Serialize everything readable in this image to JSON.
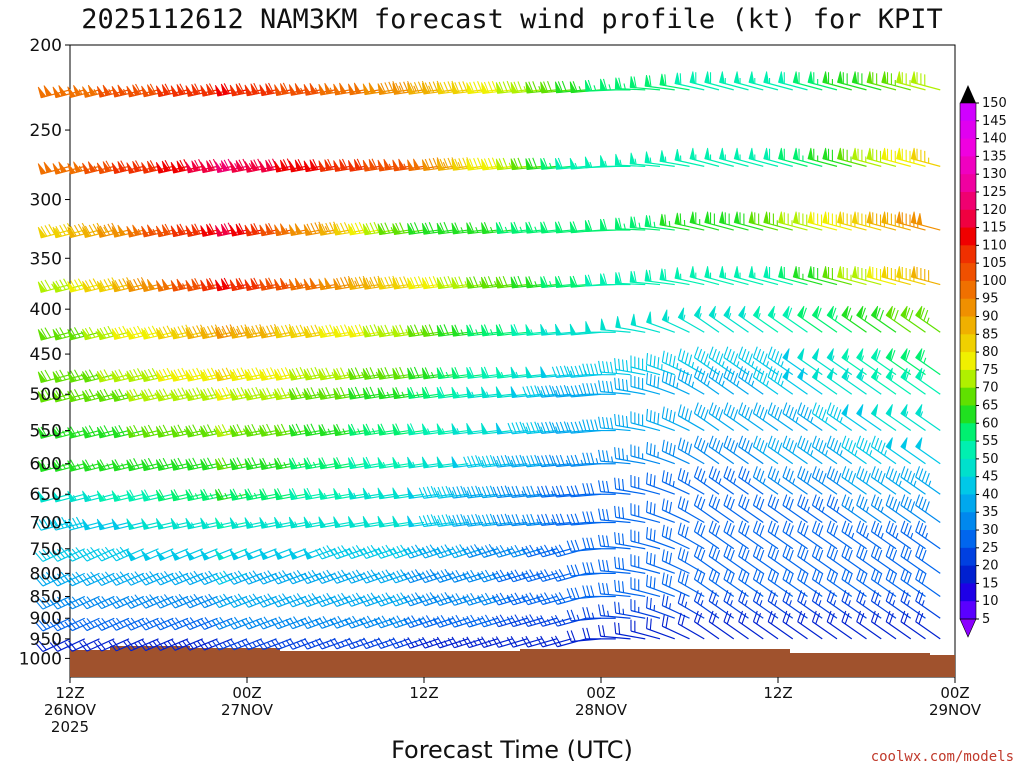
{
  "chart_data": {
    "type": "wind-barb time-height profile",
    "title": "2025112612 NAM3KM forecast wind profile (kt) for KPIT",
    "xlabel": "Forecast Time (UTC)",
    "ylabel": "",
    "y_levels_hpa": [
      200,
      250,
      300,
      350,
      400,
      450,
      500,
      550,
      600,
      650,
      700,
      750,
      800,
      850,
      900,
      950,
      1000
    ],
    "ylim": [
      200,
      1000
    ],
    "x_ticks": [
      {
        "hour": 0,
        "line1": "12Z",
        "line2": "26NOV",
        "line3": "2025"
      },
      {
        "hour": 12,
        "line1": "00Z",
        "line2": "27NOV",
        "line3": ""
      },
      {
        "hour": 24,
        "line1": "12Z",
        "line2": "",
        "line3": ""
      },
      {
        "hour": 36,
        "line1": "00Z",
        "line2": "28NOV",
        "line3": ""
      },
      {
        "hour": 48,
        "line1": "12Z",
        "line2": "",
        "line3": ""
      },
      {
        "hour": 60,
        "line1": "00Z",
        "line2": "29NOV",
        "line3": ""
      }
    ],
    "xlim_hours": [
      0,
      60
    ],
    "barb_rows_hpa": [
      225,
      275,
      325,
      375,
      425,
      475,
      500,
      550,
      600,
      650,
      700,
      750,
      800,
      850,
      900,
      950
    ],
    "speed_keyframes_kt": {
      "hours": [
        0,
        12,
        24,
        36,
        48,
        60
      ],
      "225": [
        100,
        115,
        95,
        65,
        55,
        80
      ],
      "275": [
        100,
        125,
        105,
        55,
        55,
        90
      ],
      "325": [
        85,
        120,
        70,
        60,
        70,
        100
      ],
      "375": [
        75,
        115,
        85,
        60,
        55,
        95
      ],
      "425": [
        70,
        95,
        75,
        50,
        55,
        75
      ],
      "475": [
        70,
        85,
        70,
        45,
        45,
        65
      ],
      "500": [
        70,
        80,
        65,
        40,
        45,
        60
      ],
      "550": [
        65,
        75,
        60,
        40,
        40,
        55
      ],
      "600": [
        65,
        70,
        55,
        35,
        40,
        50
      ],
      "650": [
        50,
        65,
        50,
        30,
        35,
        45
      ],
      "700": [
        45,
        55,
        50,
        30,
        30,
        40
      ],
      "750": [
        45,
        50,
        45,
        30,
        30,
        35
      ],
      "800": [
        40,
        45,
        40,
        30,
        30,
        30
      ],
      "850": [
        35,
        40,
        40,
        30,
        30,
        30
      ],
      "900": [
        30,
        35,
        35,
        25,
        25,
        25
      ],
      "950": [
        20,
        25,
        25,
        20,
        20,
        20
      ]
    },
    "direction_note": "westerly (from W/WSW) through hour ~40, veering to northwesterly afterwards",
    "terrain_color": "#a0522d",
    "colorbar": {
      "ticks": [
        5,
        10,
        15,
        20,
        25,
        30,
        35,
        40,
        45,
        50,
        55,
        60,
        65,
        70,
        75,
        80,
        85,
        90,
        95,
        100,
        105,
        110,
        115,
        120,
        125,
        130,
        135,
        140,
        145,
        150
      ],
      "colors": [
        "#8b00ff",
        "#5a00ff",
        "#1e00e6",
        "#0020d0",
        "#0040e0",
        "#0066ee",
        "#0088ee",
        "#00a8ee",
        "#00c8e8",
        "#00e0cc",
        "#00f0b0",
        "#00f070",
        "#20e020",
        "#60e000",
        "#b0f000",
        "#f0f000",
        "#f0d000",
        "#f0b000",
        "#f09000",
        "#f07000",
        "#f05000",
        "#f03000",
        "#f00000",
        "#f00040",
        "#f00070",
        "#f000a0",
        "#f000c0",
        "#f000e0",
        "#e000f0",
        "#d000ff"
      ],
      "top_color": "#000000"
    }
  },
  "header": {
    "title": "2025112612 NAM3KM forecast wind profile (kt) for KPIT"
  },
  "footer": {
    "credit": "coolwx.com/models"
  }
}
